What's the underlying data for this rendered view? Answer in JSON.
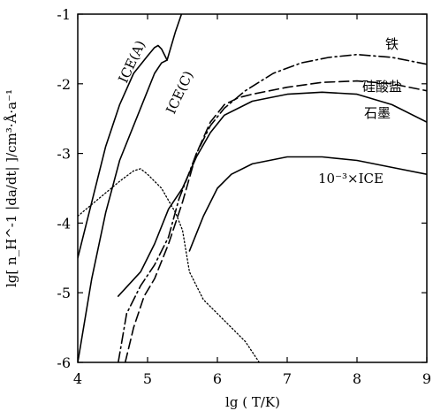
{
  "chart_data": {
    "type": "line",
    "xlabel": "lg ( T/K)",
    "ylabel": "lg[ n_H^-1 |da/dt| ]/cm³·Å·a⁻¹",
    "xlim": [
      4,
      9
    ],
    "ylim": [
      -6,
      -1
    ],
    "xticks": [
      "4",
      "5",
      "6",
      "7",
      "8",
      "9"
    ],
    "yticks": [
      "-6",
      "-5",
      "-4",
      "-3",
      "-2",
      "-1"
    ],
    "grid": false,
    "legend": "none",
    "series": [
      {
        "name": "ICE(A)",
        "style": "solid",
        "points": [
          [
            4.0,
            -4.5
          ],
          [
            4.2,
            -3.7
          ],
          [
            4.4,
            -2.9
          ],
          [
            4.6,
            -2.3
          ],
          [
            4.8,
            -1.85
          ],
          [
            5.0,
            -1.6
          ],
          [
            5.1,
            -1.48
          ],
          [
            5.15,
            -1.45
          ],
          [
            5.2,
            -1.5
          ],
          [
            5.28,
            -1.66
          ]
        ]
      },
      {
        "name": "ICE(C)",
        "style": "solid",
        "points": [
          [
            4.0,
            -6.0
          ],
          [
            4.2,
            -4.8
          ],
          [
            4.4,
            -3.85
          ],
          [
            4.6,
            -3.1
          ],
          [
            4.8,
            -2.6
          ],
          [
            5.0,
            -2.1
          ],
          [
            5.1,
            -1.85
          ],
          [
            5.2,
            -1.7
          ],
          [
            5.28,
            -1.66
          ],
          [
            5.4,
            -1.25
          ],
          [
            5.52,
            -0.9
          ]
        ]
      },
      {
        "name": "10⁻³×ICE",
        "style": "solid",
        "points": [
          [
            5.6,
            -4.4
          ],
          [
            5.8,
            -3.9
          ],
          [
            6.0,
            -3.5
          ],
          [
            6.2,
            -3.3
          ],
          [
            6.5,
            -3.15
          ],
          [
            7.0,
            -3.05
          ],
          [
            7.5,
            -3.05
          ],
          [
            8.0,
            -3.1
          ],
          [
            8.5,
            -3.2
          ],
          [
            9.0,
            -3.3
          ]
        ]
      },
      {
        "name": "石墨",
        "style": "solid",
        "points": [
          [
            4.58,
            -5.05
          ],
          [
            4.9,
            -4.7
          ],
          [
            5.1,
            -4.3
          ],
          [
            5.3,
            -3.8
          ],
          [
            5.5,
            -3.5
          ],
          [
            5.7,
            -3.05
          ],
          [
            5.9,
            -2.7
          ],
          [
            6.1,
            -2.45
          ],
          [
            6.5,
            -2.25
          ],
          [
            7.0,
            -2.15
          ],
          [
            7.5,
            -2.12
          ],
          [
            8.0,
            -2.15
          ],
          [
            8.5,
            -2.3
          ],
          [
            9.0,
            -2.55
          ]
        ]
      },
      {
        "name": "硅酸盐",
        "style": "dash",
        "points": [
          [
            4.68,
            -6.0
          ],
          [
            4.8,
            -5.5
          ],
          [
            4.95,
            -5.05
          ],
          [
            5.1,
            -4.8
          ],
          [
            5.3,
            -4.3
          ],
          [
            5.5,
            -3.7
          ],
          [
            5.7,
            -3.0
          ],
          [
            5.9,
            -2.55
          ],
          [
            6.1,
            -2.3
          ],
          [
            6.3,
            -2.2
          ],
          [
            6.5,
            -2.15
          ],
          [
            7.0,
            -2.05
          ],
          [
            7.5,
            -1.98
          ],
          [
            8.0,
            -1.96
          ],
          [
            8.5,
            -2.0
          ],
          [
            9.0,
            -2.1
          ]
        ]
      },
      {
        "name": "铁",
        "style": "dashdot",
        "points": [
          [
            4.58,
            -6.0
          ],
          [
            4.7,
            -5.3
          ],
          [
            4.9,
            -4.9
          ],
          [
            5.1,
            -4.6
          ],
          [
            5.3,
            -4.2
          ],
          [
            5.45,
            -3.65
          ],
          [
            5.55,
            -3.4
          ],
          [
            5.7,
            -3.0
          ],
          [
            5.9,
            -2.6
          ],
          [
            6.1,
            -2.35
          ],
          [
            6.4,
            -2.1
          ],
          [
            6.8,
            -1.85
          ],
          [
            7.2,
            -1.7
          ],
          [
            7.6,
            -1.62
          ],
          [
            8.0,
            -1.58
          ],
          [
            8.5,
            -1.62
          ],
          [
            9.0,
            -1.72
          ]
        ]
      },
      {
        "name": "",
        "style": "dot",
        "points": [
          [
            4.0,
            -3.9
          ],
          [
            4.3,
            -3.65
          ],
          [
            4.6,
            -3.4
          ],
          [
            4.8,
            -3.25
          ],
          [
            4.9,
            -3.22
          ],
          [
            5.0,
            -3.3
          ],
          [
            5.2,
            -3.5
          ],
          [
            5.4,
            -3.85
          ],
          [
            5.5,
            -4.1
          ],
          [
            5.6,
            -4.7
          ],
          [
            5.8,
            -5.1
          ],
          [
            6.0,
            -5.3
          ],
          [
            6.2,
            -5.5
          ],
          [
            6.4,
            -5.7
          ],
          [
            6.6,
            -6.0
          ]
        ]
      }
    ],
    "annotations": [
      {
        "id": "ice_a",
        "text": "ICE(A)"
      },
      {
        "id": "ice_c",
        "text": "ICE(C)"
      },
      {
        "id": "iron",
        "text": "铁"
      },
      {
        "id": "silicate",
        "text": "硅酸盐"
      },
      {
        "id": "graphite",
        "text": "石墨"
      },
      {
        "id": "ice_scaled",
        "text": "10⁻³×ICE"
      }
    ]
  }
}
